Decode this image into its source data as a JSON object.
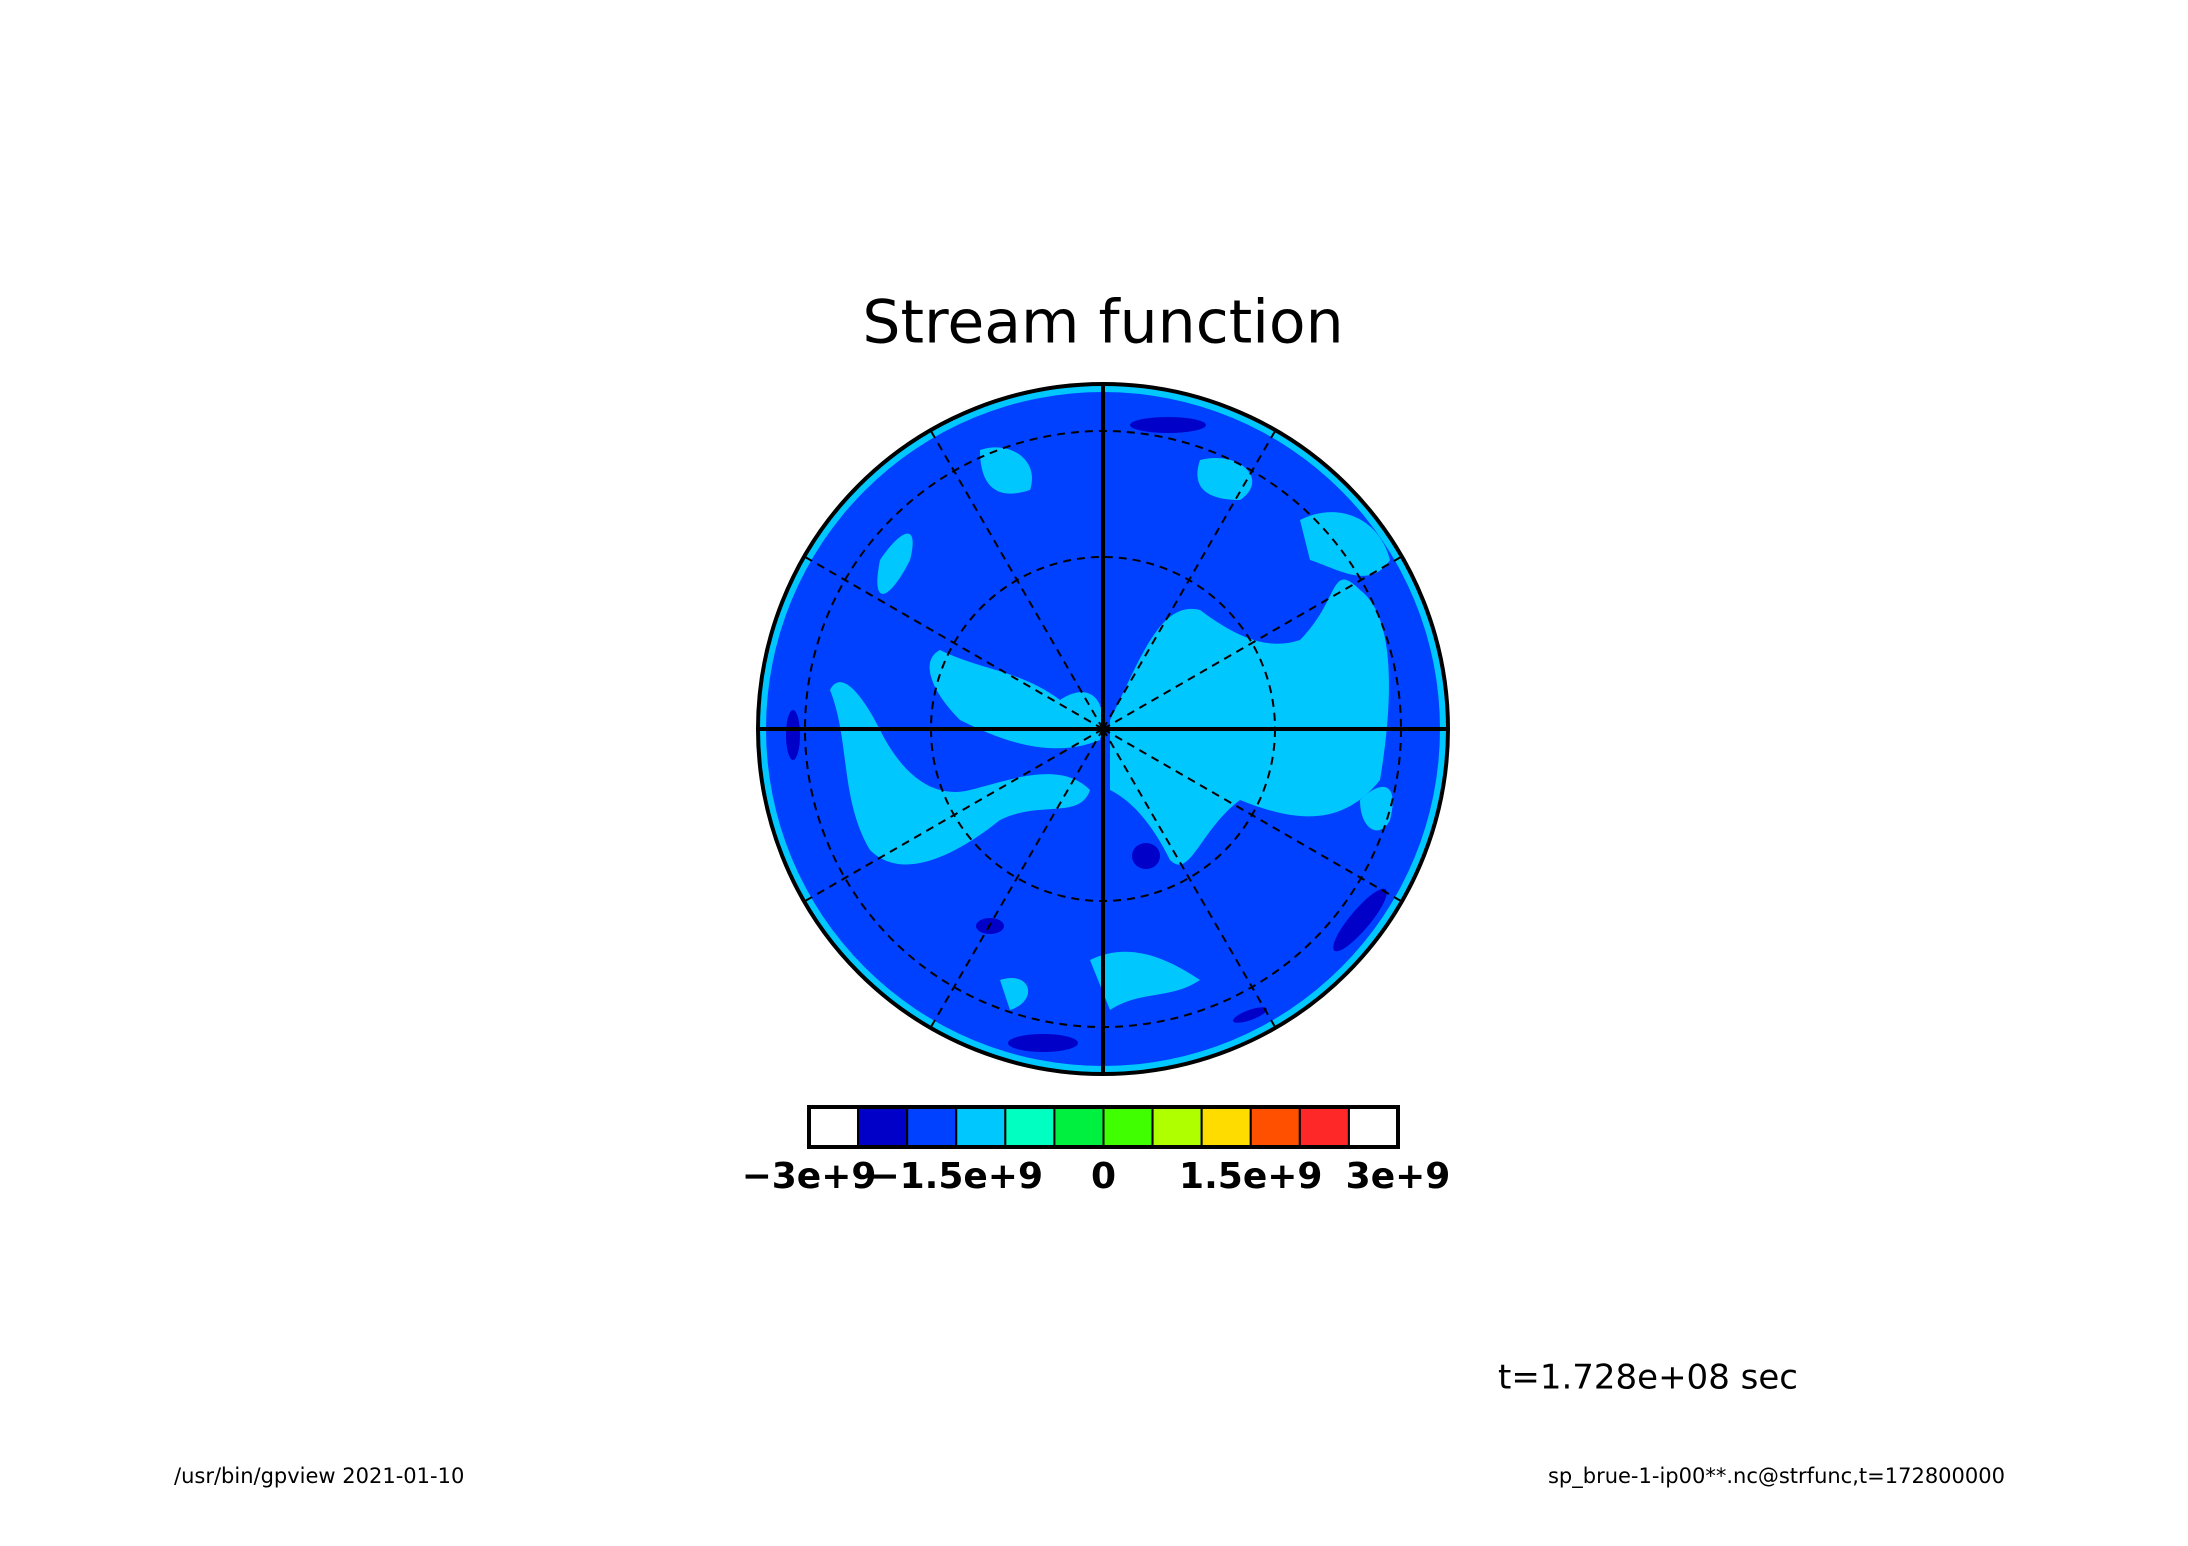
{
  "chart_data": {
    "type": "contour",
    "title": "Stream function",
    "colorbar": {
      "colors": [
        "#ffffff",
        "#0000c8",
        "#0040ff",
        "#00c8ff",
        "#00ffc0",
        "#00f040",
        "#40ff00",
        "#b0ff00",
        "#ffdc00",
        "#ff5000",
        "#ff2828",
        "#ffffff"
      ],
      "xlim": [
        -3000000000,
        3000000000
      ],
      "xticks": [
        {
          "value": -3000000000,
          "label": "−3e+9"
        },
        {
          "value": -1500000000,
          "label": "−1.5e+9"
        },
        0,
        {
          "value": 1500000000,
          "label": "1.5e+9"
        },
        {
          "value": 3000000000,
          "label": "3e+9"
        }
      ]
    },
    "time_label": "t=1.728e+08 sec",
    "footer_left": "/usr/bin/gpview  2021-01-10",
    "footer_right": "sp_brue-1-ip00**.nc@strfunc,t=172800000"
  }
}
